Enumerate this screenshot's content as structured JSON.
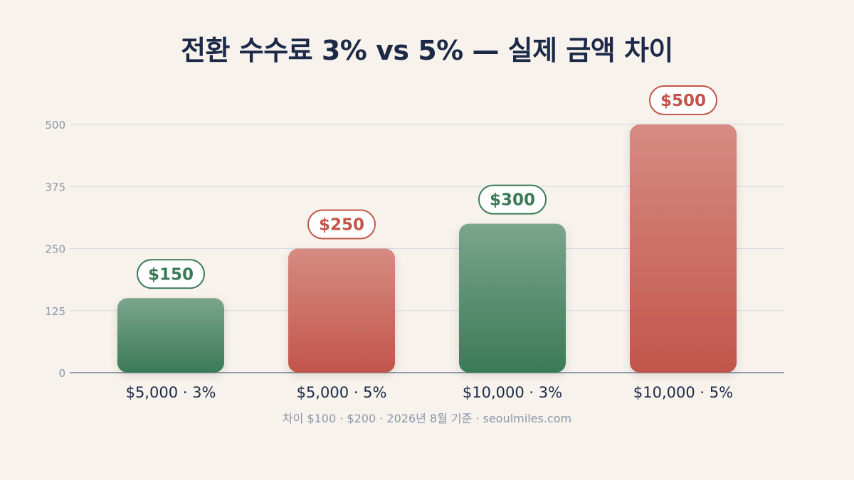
{
  "chart_data": {
    "type": "bar",
    "title": "전환 수수료 3% vs 5% — 실제 금액 차이",
    "categories": [
      "$5,000 · 3%",
      "$5,000 · 5%",
      "$10,000 · 3%",
      "$10,000 · 5%"
    ],
    "values": [
      150,
      250,
      300,
      500
    ],
    "value_labels": [
      "$150",
      "$250",
      "$300",
      "$500"
    ],
    "ylim": [
      0,
      500
    ],
    "yticks": [
      "0",
      "125",
      "250",
      "375",
      "500"
    ],
    "grid": true,
    "legend": "none",
    "footnote": "차이 $100 · $200 · 2026년 8월 기준 · seoulmiles.com"
  },
  "colors": {
    "green_top": "#7ba58c",
    "green_bottom": "#3a7a57",
    "green_text": "#3a7a57",
    "red_top": "#d68b82",
    "red_bottom": "#c2554a",
    "red_text": "#c2554a",
    "grid": "#d3dbe4",
    "axis": "#6f7c92"
  },
  "bar_color_keys": [
    "green",
    "red",
    "green",
    "red"
  ]
}
